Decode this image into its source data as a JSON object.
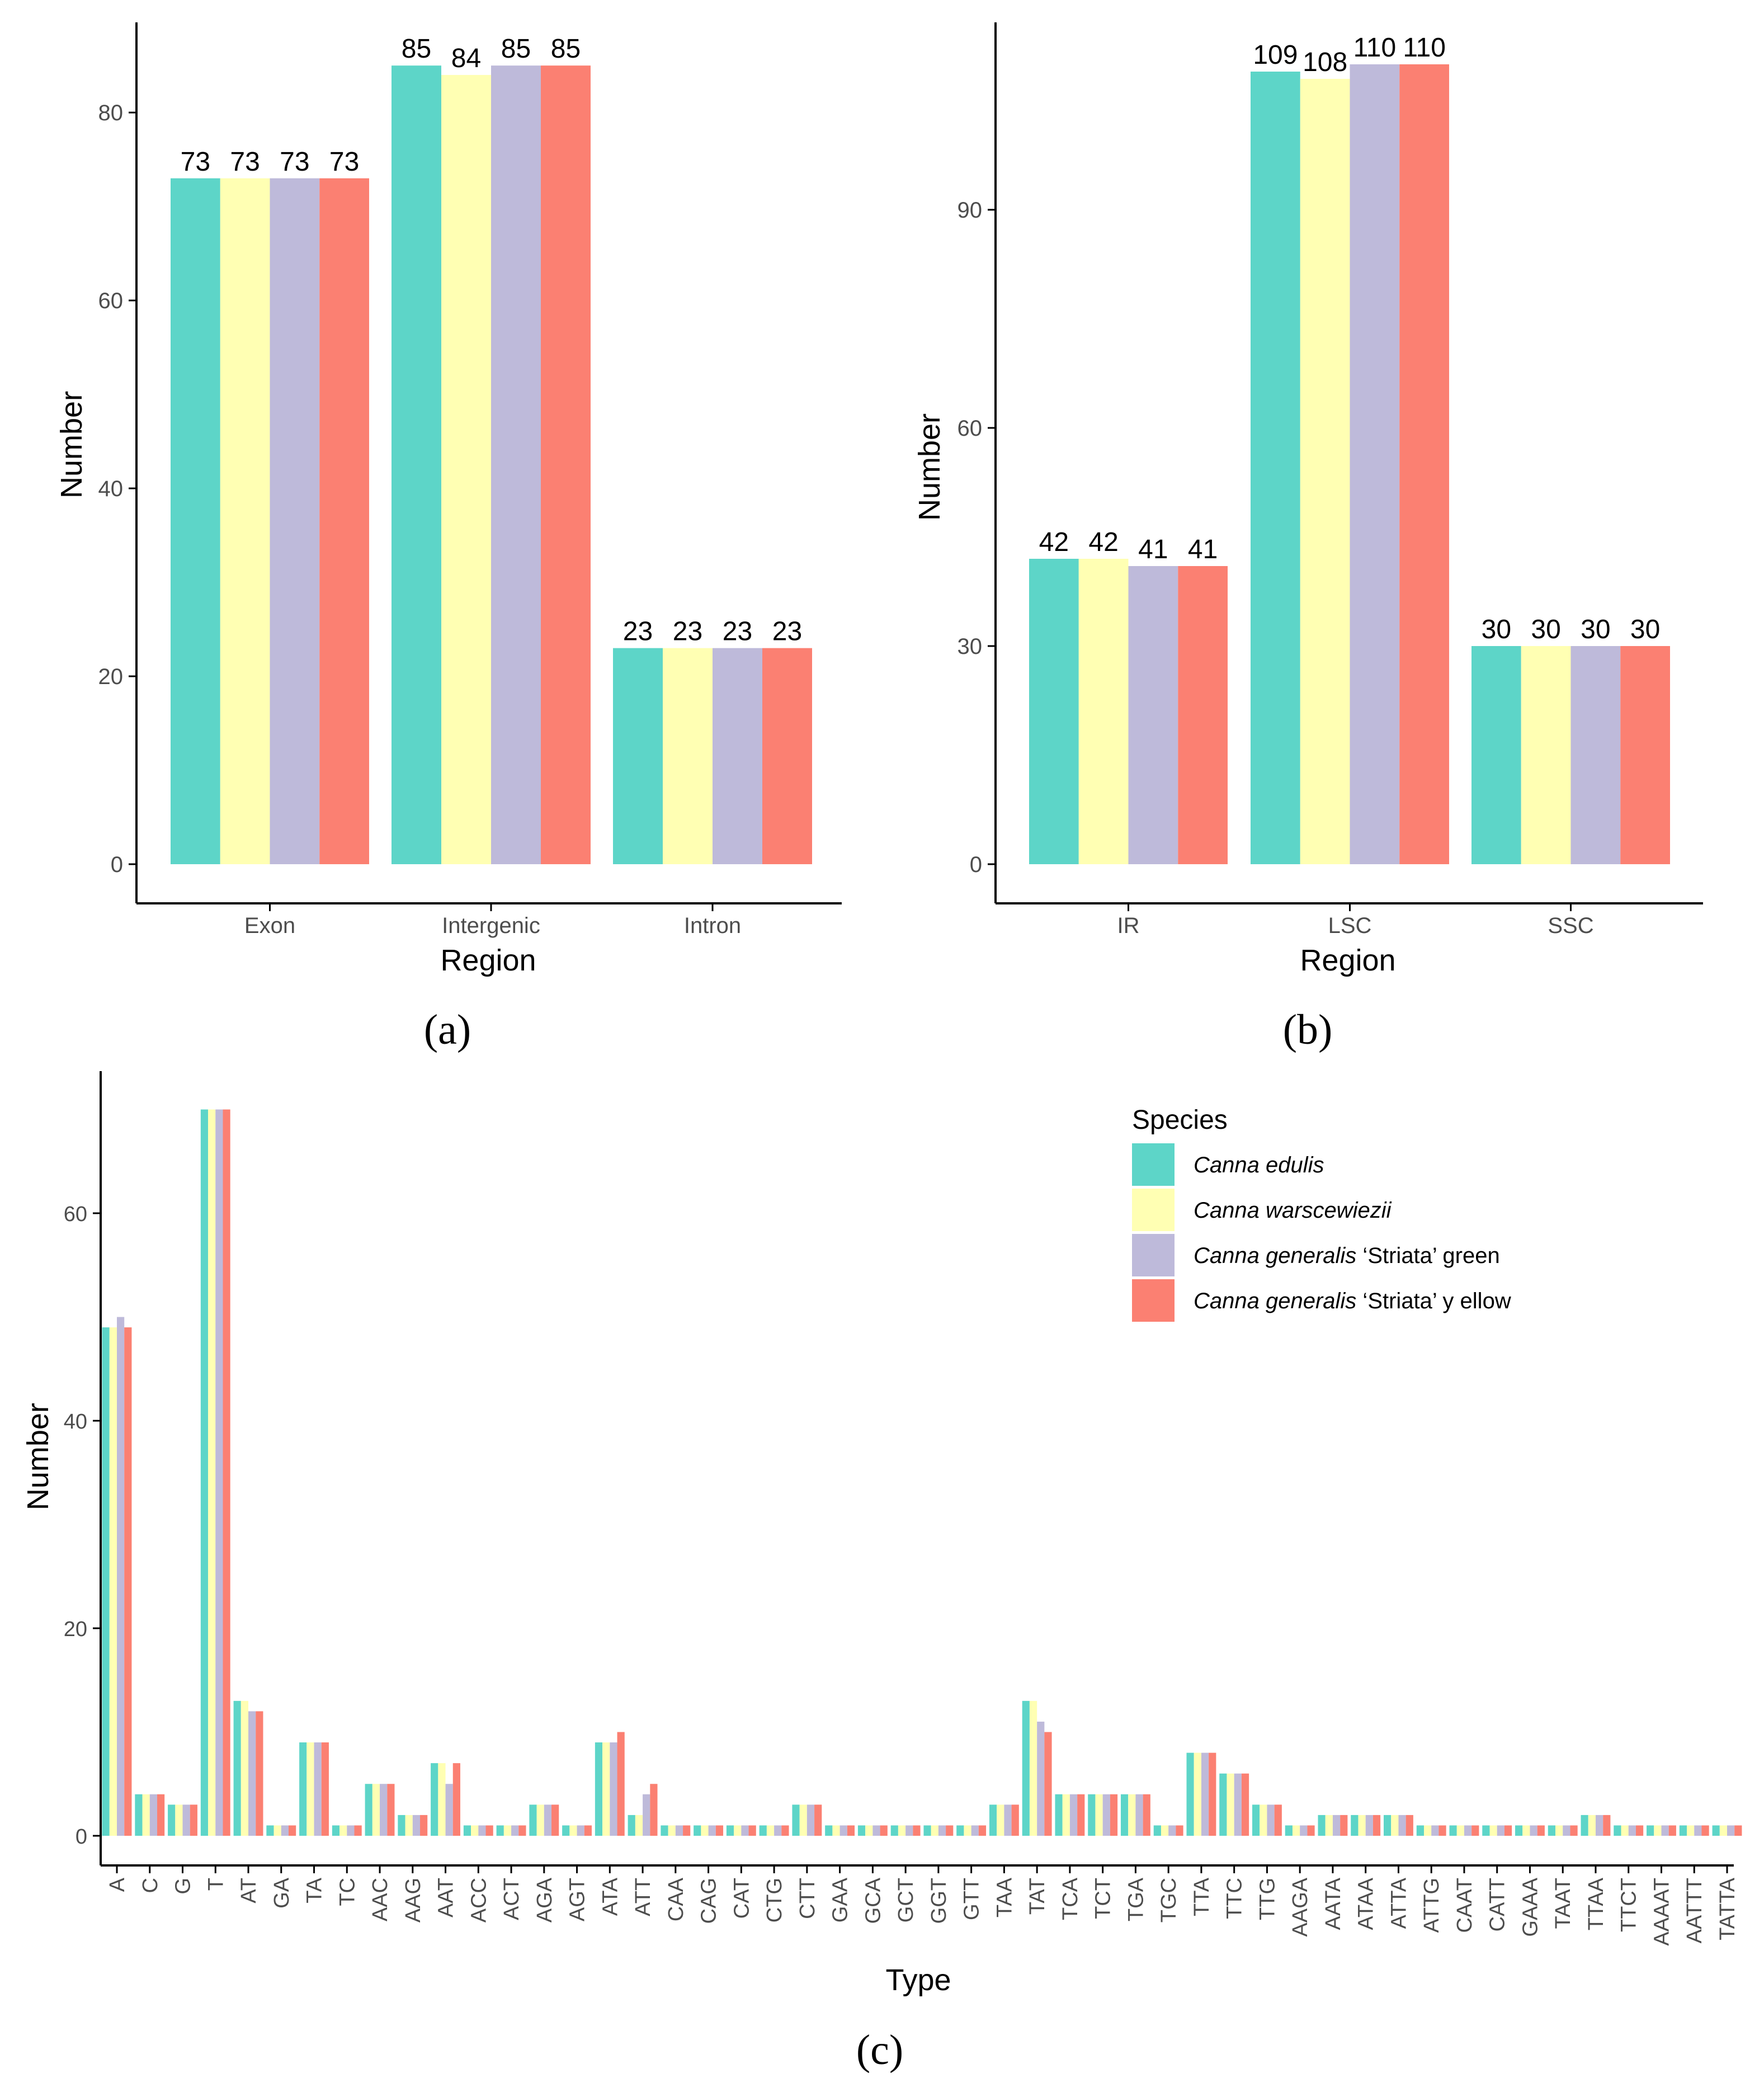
{
  "colors": {
    "series": [
      "#5DD5C8",
      "#FFFFB3",
      "#BEBADA",
      "#FB8072"
    ],
    "axis": "#000000",
    "tick_text": "#4d4d4d",
    "background": "#ffffff"
  },
  "legend": {
    "title": "Species",
    "entries": [
      {
        "italic": "Canna edulis",
        "rest": ""
      },
      {
        "italic": "Canna warscewiezii",
        "rest": ""
      },
      {
        "italic": "Canna generalis",
        "rest": " ‘Striata’ green"
      },
      {
        "italic": "Canna generalis",
        "rest": " ‘Striata’ y ellow"
      }
    ]
  },
  "chart_data": [
    {
      "panel": "(a)",
      "type": "bar",
      "xlabel": "Region",
      "ylabel": "Number",
      "categories": [
        "Exon",
        "Intergenic",
        "Intron"
      ],
      "ylim": [
        0,
        89
      ],
      "yticks": [
        0,
        20,
        40,
        60,
        80
      ],
      "series": [
        {
          "name": "Canna edulis",
          "values": [
            73,
            85,
            23
          ]
        },
        {
          "name": "Canna warscewiezii",
          "values": [
            73,
            84,
            23
          ]
        },
        {
          "name": "Canna generalis ‘Striata’ green",
          "values": [
            73,
            85,
            23
          ]
        },
        {
          "name": "Canna generalis ‘Striata’ y ellow",
          "values": [
            73,
            85,
            23
          ]
        }
      ],
      "data_labels": true,
      "grid": false
    },
    {
      "panel": "(b)",
      "type": "bar",
      "xlabel": "Region",
      "ylabel": "Number",
      "categories": [
        "IR",
        "LSC",
        "SSC"
      ],
      "ylim": [
        0,
        115
      ],
      "yticks": [
        0,
        30,
        60,
        90
      ],
      "series": [
        {
          "name": "Canna edulis",
          "values": [
            42,
            109,
            30
          ]
        },
        {
          "name": "Canna warscewiezii",
          "values": [
            42,
            108,
            30
          ]
        },
        {
          "name": "Canna generalis ‘Striata’ green",
          "values": [
            41,
            110,
            30
          ]
        },
        {
          "name": "Canna generalis ‘Striata’ y ellow",
          "values": [
            41,
            110,
            30
          ]
        }
      ],
      "data_labels": true,
      "grid": false
    },
    {
      "panel": "(c)",
      "type": "bar",
      "xlabel": "Type",
      "ylabel": "Number",
      "categories": [
        "A",
        "C",
        "G",
        "T",
        "AT",
        "GA",
        "TA",
        "TC",
        "AAC",
        "AAG",
        "AAT",
        "ACC",
        "ACT",
        "AGA",
        "AGT",
        "ATA",
        "ATT",
        "CAA",
        "CAG",
        "CAT",
        "CTG",
        "CTT",
        "GAA",
        "GCA",
        "GCT",
        "GGT",
        "GTT",
        "TAA",
        "TAT",
        "TCA",
        "TCT",
        "TGA",
        "TGC",
        "TTA",
        "TTC",
        "TTG",
        "AAGA",
        "AATA",
        "ATAA",
        "ATTA",
        "ATTG",
        "CAAT",
        "CATT",
        "GAAA",
        "TAAT",
        "TTAA",
        "TTCT",
        "AAAAT",
        "AATTT",
        "TATTA"
      ],
      "ylim": [
        -3.5,
        73.5
      ],
      "yticks": [
        0,
        20,
        40,
        60
      ],
      "series": [
        {
          "name": "Canna edulis",
          "values": [
            49,
            4,
            3,
            70,
            13,
            1,
            9,
            1,
            5,
            2,
            7,
            1,
            1,
            3,
            1,
            9,
            2,
            1,
            1,
            1,
            1,
            3,
            1,
            1,
            1,
            1,
            1,
            3,
            13,
            4,
            4,
            4,
            1,
            8,
            6,
            3,
            1,
            2,
            2,
            2,
            1,
            1,
            1,
            1,
            1,
            2,
            1,
            1,
            1,
            1
          ]
        },
        {
          "name": "Canna warscewiezii",
          "values": [
            49,
            4,
            3,
            70,
            13,
            1,
            9,
            1,
            5,
            2,
            7,
            1,
            1,
            3,
            1,
            9,
            2,
            1,
            1,
            1,
            1,
            3,
            1,
            1,
            1,
            1,
            1,
            3,
            13,
            4,
            4,
            4,
            1,
            8,
            6,
            3,
            1,
            2,
            2,
            2,
            1,
            1,
            1,
            1,
            1,
            2,
            1,
            1,
            1,
            1
          ]
        },
        {
          "name": "Canna generalis ‘Striata’ green",
          "values": [
            50,
            4,
            3,
            70,
            12,
            1,
            9,
            1,
            5,
            2,
            5,
            1,
            1,
            3,
            1,
            9,
            4,
            1,
            1,
            1,
            1,
            3,
            1,
            1,
            1,
            1,
            1,
            3,
            11,
            4,
            4,
            4,
            1,
            8,
            6,
            3,
            1,
            2,
            2,
            2,
            1,
            1,
            1,
            1,
            1,
            2,
            1,
            1,
            1,
            1
          ]
        },
        {
          "name": "Canna generalis ‘Striata’ y ellow",
          "values": [
            49,
            4,
            3,
            70,
            12,
            1,
            9,
            1,
            5,
            2,
            7,
            1,
            1,
            3,
            1,
            10,
            5,
            1,
            1,
            1,
            1,
            3,
            1,
            1,
            1,
            1,
            1,
            3,
            10,
            4,
            4,
            4,
            1,
            8,
            6,
            3,
            1,
            2,
            2,
            2,
            1,
            1,
            1,
            1,
            1,
            2,
            1,
            1,
            1,
            1
          ]
        }
      ],
      "data_labels": false,
      "grid": false,
      "legend_position": "top-right"
    }
  ]
}
